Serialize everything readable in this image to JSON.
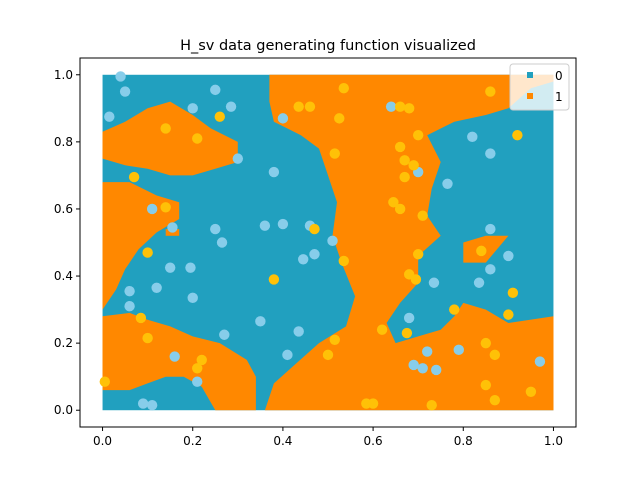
{
  "chart_data": {
    "type": "scatter",
    "title": "H_sv data generating function visualized",
    "xlabel": "",
    "ylabel": "",
    "xlim": [
      -0.05,
      1.05
    ],
    "ylim": [
      -0.05,
      1.05
    ],
    "xticks": [
      "0.0",
      "0.2",
      "0.4",
      "0.6",
      "0.8",
      "1.0"
    ],
    "yticks": [
      "0.0",
      "0.2",
      "0.4",
      "0.6",
      "0.8",
      "1.0"
    ],
    "grid": false,
    "legend": {
      "placement": "top-right",
      "entries": [
        "0",
        "1"
      ]
    },
    "colors": {
      "region_0": "#21a0bf",
      "region_1": "#ff8800",
      "point_0": "#87cdea",
      "point_1": "#ffc107"
    },
    "decision_regions": {
      "class_0_background": true,
      "class_1_polygons": [
        [
          [
            0.0,
            0.83
          ],
          [
            0.05,
            0.86
          ],
          [
            0.1,
            0.9
          ],
          [
            0.15,
            0.92
          ],
          [
            0.2,
            0.88
          ],
          [
            0.24,
            0.84
          ],
          [
            0.3,
            0.8
          ],
          [
            0.3,
            0.74
          ],
          [
            0.25,
            0.72
          ],
          [
            0.2,
            0.7
          ],
          [
            0.15,
            0.7
          ],
          [
            0.1,
            0.72
          ],
          [
            0.05,
            0.73
          ],
          [
            0.0,
            0.75
          ]
        ],
        [
          [
            0.0,
            0.68
          ],
          [
            0.06,
            0.68
          ],
          [
            0.12,
            0.64
          ],
          [
            0.17,
            0.62
          ],
          [
            0.17,
            0.57
          ],
          [
            0.12,
            0.53
          ],
          [
            0.08,
            0.48
          ],
          [
            0.05,
            0.42
          ],
          [
            0.03,
            0.36
          ],
          [
            0.0,
            0.3
          ]
        ],
        [
          [
            0.14,
            0.54
          ],
          [
            0.17,
            0.54
          ],
          [
            0.17,
            0.52
          ],
          [
            0.14,
            0.52
          ]
        ],
        [
          [
            0.0,
            0.28
          ],
          [
            0.06,
            0.29
          ],
          [
            0.1,
            0.27
          ],
          [
            0.15,
            0.25
          ],
          [
            0.2,
            0.22
          ],
          [
            0.26,
            0.2
          ],
          [
            0.32,
            0.15
          ],
          [
            0.34,
            0.1
          ],
          [
            0.34,
            0.0
          ],
          [
            0.25,
            0.0
          ],
          [
            0.22,
            0.07
          ],
          [
            0.18,
            0.1
          ],
          [
            0.14,
            0.1
          ],
          [
            0.1,
            0.08
          ],
          [
            0.06,
            0.06
          ],
          [
            0.0,
            0.06
          ]
        ],
        [
          [
            0.37,
            1.0
          ],
          [
            1.0,
            1.0
          ],
          [
            1.0,
            0.98
          ],
          [
            0.95,
            0.96
          ],
          [
            0.9,
            0.9
          ],
          [
            0.85,
            0.88
          ],
          [
            0.78,
            0.86
          ],
          [
            0.72,
            0.82
          ],
          [
            0.75,
            0.74
          ],
          [
            0.73,
            0.66
          ],
          [
            0.72,
            0.58
          ],
          [
            0.75,
            0.52
          ],
          [
            0.7,
            0.46
          ],
          [
            0.7,
            0.38
          ],
          [
            0.66,
            0.32
          ],
          [
            0.63,
            0.26
          ],
          [
            0.65,
            0.2
          ],
          [
            0.7,
            0.22
          ],
          [
            0.75,
            0.24
          ],
          [
            0.78,
            0.28
          ],
          [
            0.8,
            0.32
          ],
          [
            0.85,
            0.3
          ],
          [
            0.9,
            0.26
          ],
          [
            1.0,
            0.28
          ],
          [
            1.0,
            0.0
          ],
          [
            0.36,
            0.0
          ],
          [
            0.38,
            0.08
          ],
          [
            0.43,
            0.14
          ],
          [
            0.48,
            0.2
          ],
          [
            0.54,
            0.25
          ],
          [
            0.56,
            0.34
          ],
          [
            0.53,
            0.44
          ],
          [
            0.51,
            0.52
          ],
          [
            0.52,
            0.62
          ],
          [
            0.5,
            0.7
          ],
          [
            0.48,
            0.78
          ],
          [
            0.44,
            0.82
          ],
          [
            0.38,
            0.86
          ],
          [
            0.37,
            0.92
          ]
        ],
        [
          [
            0.8,
            0.5
          ],
          [
            0.85,
            0.52
          ],
          [
            0.9,
            0.52
          ],
          [
            0.85,
            0.44
          ],
          [
            0.8,
            0.44
          ]
        ],
        [
          [
            0.82,
            0.14
          ],
          [
            0.86,
            0.16
          ],
          [
            0.9,
            0.14
          ],
          [
            0.86,
            0.1
          ],
          [
            0.82,
            0.1
          ]
        ]
      ]
    },
    "series": [
      {
        "name": "0",
        "points": [
          [
            0.04,
            0.995
          ],
          [
            0.05,
            0.95
          ],
          [
            0.015,
            0.875
          ],
          [
            0.2,
            0.9
          ],
          [
            0.25,
            0.955
          ],
          [
            0.285,
            0.905
          ],
          [
            0.4,
            0.87
          ],
          [
            0.64,
            0.905
          ],
          [
            0.82,
            0.815
          ],
          [
            0.86,
            0.765
          ],
          [
            0.3,
            0.75
          ],
          [
            0.38,
            0.71
          ],
          [
            0.7,
            0.71
          ],
          [
            0.765,
            0.675
          ],
          [
            0.11,
            0.6
          ],
          [
            0.25,
            0.54
          ],
          [
            0.155,
            0.545
          ],
          [
            0.265,
            0.5
          ],
          [
            0.36,
            0.55
          ],
          [
            0.4,
            0.555
          ],
          [
            0.46,
            0.55
          ],
          [
            0.47,
            0.465
          ],
          [
            0.445,
            0.45
          ],
          [
            0.51,
            0.505
          ],
          [
            0.15,
            0.425
          ],
          [
            0.195,
            0.425
          ],
          [
            0.06,
            0.355
          ],
          [
            0.12,
            0.365
          ],
          [
            0.2,
            0.335
          ],
          [
            0.06,
            0.31
          ],
          [
            0.35,
            0.265
          ],
          [
            0.68,
            0.275
          ],
          [
            0.735,
            0.38
          ],
          [
            0.86,
            0.54
          ],
          [
            0.86,
            0.42
          ],
          [
            0.9,
            0.46
          ],
          [
            0.835,
            0.38
          ],
          [
            0.27,
            0.225
          ],
          [
            0.435,
            0.235
          ],
          [
            0.41,
            0.165
          ],
          [
            0.16,
            0.16
          ],
          [
            0.21,
            0.085
          ],
          [
            0.79,
            0.18
          ],
          [
            0.72,
            0.175
          ],
          [
            0.69,
            0.135
          ],
          [
            0.71,
            0.125
          ],
          [
            0.74,
            0.12
          ],
          [
            0.97,
            0.145
          ],
          [
            0.09,
            0.02
          ],
          [
            0.11,
            0.015
          ]
        ]
      },
      {
        "name": "1",
        "points": [
          [
            0.14,
            0.84
          ],
          [
            0.21,
            0.81
          ],
          [
            0.26,
            0.875
          ],
          [
            0.435,
            0.905
          ],
          [
            0.46,
            0.905
          ],
          [
            0.535,
            0.96
          ],
          [
            0.525,
            0.87
          ],
          [
            0.515,
            0.765
          ],
          [
            0.66,
            0.905
          ],
          [
            0.68,
            0.9
          ],
          [
            0.7,
            0.82
          ],
          [
            0.86,
            0.95
          ],
          [
            0.92,
            0.82
          ],
          [
            0.66,
            0.785
          ],
          [
            0.67,
            0.745
          ],
          [
            0.69,
            0.73
          ],
          [
            0.67,
            0.695
          ],
          [
            0.07,
            0.695
          ],
          [
            0.14,
            0.605
          ],
          [
            0.645,
            0.62
          ],
          [
            0.66,
            0.6
          ],
          [
            0.71,
            0.58
          ],
          [
            0.47,
            0.54
          ],
          [
            0.1,
            0.47
          ],
          [
            0.535,
            0.445
          ],
          [
            0.7,
            0.465
          ],
          [
            0.84,
            0.475
          ],
          [
            0.68,
            0.405
          ],
          [
            0.38,
            0.39
          ],
          [
            0.695,
            0.39
          ],
          [
            0.91,
            0.35
          ],
          [
            0.085,
            0.275
          ],
          [
            0.1,
            0.215
          ],
          [
            0.62,
            0.24
          ],
          [
            0.675,
            0.23
          ],
          [
            0.78,
            0.3
          ],
          [
            0.9,
            0.285
          ],
          [
            0.85,
            0.2
          ],
          [
            0.87,
            0.165
          ],
          [
            0.515,
            0.21
          ],
          [
            0.5,
            0.165
          ],
          [
            0.22,
            0.15
          ],
          [
            0.21,
            0.125
          ],
          [
            0.005,
            0.085
          ],
          [
            0.85,
            0.075
          ],
          [
            0.95,
            0.055
          ],
          [
            0.87,
            0.03
          ],
          [
            0.585,
            0.02
          ],
          [
            0.6,
            0.02
          ],
          [
            0.73,
            0.015
          ]
        ]
      }
    ]
  }
}
